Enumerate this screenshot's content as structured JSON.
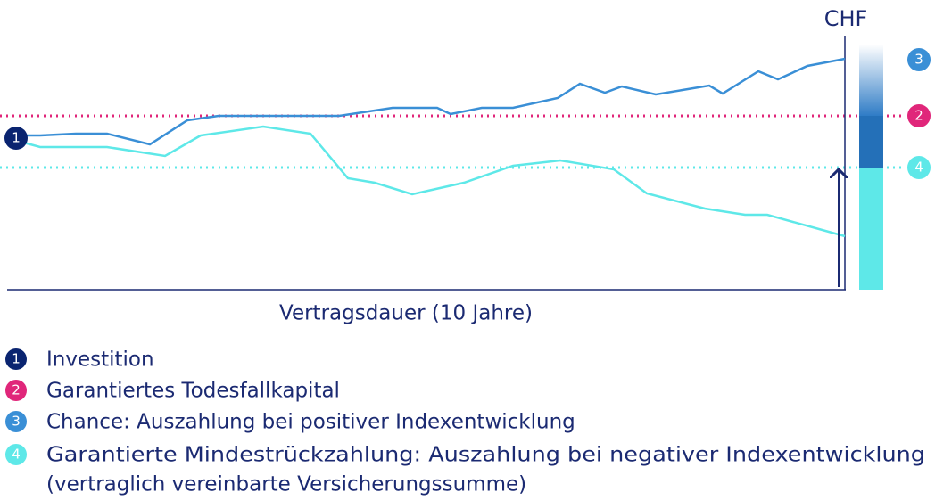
{
  "axis_unit": "CHF",
  "x_axis_label": "Vertragsdauer (10 Jahre)",
  "markers": [
    "1",
    "2",
    "3",
    "4"
  ],
  "legend": [
    {
      "number": "1",
      "lines": [
        "Investition"
      ]
    },
    {
      "number": "2",
      "lines": [
        "Garantiertes Todesfallkapital"
      ]
    },
    {
      "number": "3",
      "lines": [
        "Chance: Auszahlung bei positiver Indexentwicklung"
      ]
    },
    {
      "number": "4",
      "lines": [
        "Garantierte Mindestrückzahlung: Auszahlung bei negativer Indexentwicklung",
        "(vertraglich vereinbarte Versicherungssumme)"
      ]
    }
  ]
}
